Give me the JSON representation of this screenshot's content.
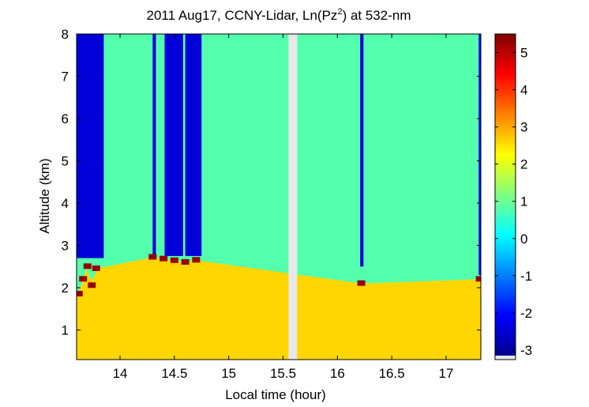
{
  "chart_data": {
    "type": "heatmap",
    "title_main": "2011 Aug17, CCNY-Lidar, Ln(Pz",
    "title_sup": "2",
    "title_end": ") at 532-nm",
    "xlabel": "Local time (hour)",
    "ylabel": "Altitude (km)",
    "xlim": [
      13.6,
      17.32
    ],
    "ylim": [
      0.3,
      8
    ],
    "x_ticks": [
      {
        "value": 14,
        "label": "14"
      },
      {
        "value": 14.5,
        "label": "14.5"
      },
      {
        "value": 15,
        "label": "15"
      },
      {
        "value": 15.5,
        "label": "15.5"
      },
      {
        "value": 16,
        "label": "16"
      },
      {
        "value": 16.5,
        "label": "16.5"
      },
      {
        "value": 17,
        "label": "17"
      }
    ],
    "y_ticks": [
      {
        "value": 1,
        "label": "1"
      },
      {
        "value": 2,
        "label": "2"
      },
      {
        "value": 3,
        "label": "3"
      },
      {
        "value": 4,
        "label": "4"
      },
      {
        "value": 5,
        "label": "5"
      },
      {
        "value": 6,
        "label": "6"
      },
      {
        "value": 7,
        "label": "7"
      },
      {
        "value": 8,
        "label": "8"
      }
    ],
    "colorbar": {
      "range": [
        -3.15,
        5.5
      ],
      "colormap": "jet",
      "ticks": [
        {
          "value": 5,
          "label": "5"
        },
        {
          "value": 4,
          "label": "4"
        },
        {
          "value": 3,
          "label": "3"
        },
        {
          "value": 2,
          "label": "2"
        },
        {
          "value": 1,
          "label": "1"
        },
        {
          "value": 0,
          "label": "0"
        },
        {
          "value": -1,
          "label": "-1"
        },
        {
          "value": -2,
          "label": "-2"
        },
        {
          "value": -3,
          "label": "-3"
        }
      ]
    },
    "data_gap": [
      15.55,
      15.63
    ],
    "free_troposphere_value": 0.8,
    "boundary_layer_value": 2.6,
    "regions": [
      {
        "x": [
          13.6,
          13.85
        ],
        "y": [
          2.7,
          8
        ],
        "value": -2.4
      },
      {
        "x": [
          14.3,
          14.33
        ],
        "y": [
          2.75,
          8
        ],
        "value": -2.4
      },
      {
        "x": [
          14.41,
          14.58
        ],
        "y": [
          2.75,
          8
        ],
        "value": -2.4
      },
      {
        "x": [
          14.6,
          14.75
        ],
        "y": [
          2.75,
          8
        ],
        "value": -2.4
      },
      {
        "x": [
          16.21,
          16.24
        ],
        "y": [
          2.5,
          8
        ],
        "value": -2.4
      },
      {
        "x": [
          17.3,
          17.32
        ],
        "y": [
          2.3,
          8
        ],
        "value": -2.0
      }
    ],
    "cloud_base_heights": [
      {
        "x": 13.62,
        "y": 1.85
      },
      {
        "x": 13.66,
        "y": 2.2
      },
      {
        "x": 13.7,
        "y": 2.5
      },
      {
        "x": 13.74,
        "y": 2.05
      },
      {
        "x": 13.78,
        "y": 2.45
      },
      {
        "x": 14.3,
        "y": 2.72
      },
      {
        "x": 14.4,
        "y": 2.68
      },
      {
        "x": 14.5,
        "y": 2.64
      },
      {
        "x": 14.6,
        "y": 2.6
      },
      {
        "x": 14.7,
        "y": 2.65
      },
      {
        "x": 16.22,
        "y": 2.1
      },
      {
        "x": 17.31,
        "y": 2.2
      }
    ]
  }
}
